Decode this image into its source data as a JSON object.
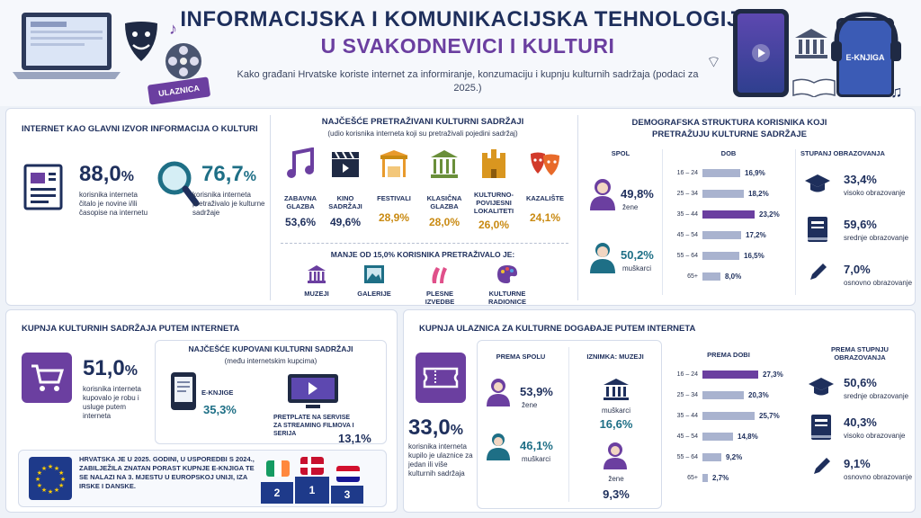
{
  "header": {
    "title_line1": "INFORMACIJSKA I KOMUNIKACIJSKA TEHNOLOGIJA",
    "title_line2": "U SVAKODNEVICI I KULTURI",
    "subtitle": "Kako građani Hrvatske koriste internet za informiranje, konzumaciju i kupnju kulturnih sadržaja (podaci za 2025.)",
    "ticket_label": "ULAZNICA",
    "ebook_label": "E-KNJIGA"
  },
  "info": {
    "title": "INTERNET KAO GLAVNI IZVOR INFORMACIJA O KULTURI",
    "stat1_int": "88,0",
    "stat1_unit": "%",
    "stat1_text": "korisnika interneta čitalo je novine i/ili časopise na internetu",
    "stat2_int": "76,7",
    "stat2_unit": "%",
    "stat2_text": "korisnika interneta pretraživalo je kulturne sadržaje"
  },
  "search": {
    "title": "NAJČEŠĆE PRETRAŽIVANI KULTURNI SADRŽAJI",
    "subtitle": "(udio korisnika interneta koji su pretraživali pojedini sadržaj)",
    "items": [
      {
        "label": "ZABAVNA GLAZBA",
        "pct": "53,6%"
      },
      {
        "label": "KINO SADRŽAJI",
        "pct": "49,6%"
      },
      {
        "label": "FESTIVALI",
        "pct": "28,9%"
      },
      {
        "label": "KLASIČNA GLAZBA",
        "pct": "28,0%"
      },
      {
        "label": "KULTURNO-POVIJESNI LOKALITETI",
        "pct": "26,0%"
      },
      {
        "label": "KAZALIŠTE",
        "pct": "24,1%"
      }
    ],
    "less_title": "MANJE OD 15,0% KORISNIKA PRETRAŽIVALO JE:",
    "less": [
      "MUZEJI",
      "GALERIJE",
      "PLESNE IZVEDBE",
      "KULTURNE RADIONICE"
    ]
  },
  "demo": {
    "title": "DEMOGRAFSKA STRUKTURA KORISNIKA KOJI PRETRAŽUJU KULTURNE SADRŽAJE",
    "sex_title": "SPOL",
    "women_pct": "49,8%",
    "women": "žene",
    "men_pct": "50,2%",
    "men": "muškarci",
    "age_title": "DOB",
    "ages": [
      {
        "label": "16 – 24",
        "value": 16.9,
        "text": "16,9%"
      },
      {
        "label": "25 – 34",
        "value": 18.2,
        "text": "18,2%"
      },
      {
        "label": "35 – 44",
        "value": 23.2,
        "text": "23,2%"
      },
      {
        "label": "45 – 54",
        "value": 17.2,
        "text": "17,2%"
      },
      {
        "label": "55 – 64",
        "value": 16.5,
        "text": "16,5%"
      },
      {
        "label": "65+",
        "value": 8.0,
        "text": "8,0%"
      }
    ],
    "edu_title": "STUPANJ OBRAZOVANJA",
    "edu": [
      {
        "pct": "33,4%",
        "label": "visoko obrazovanje"
      },
      {
        "pct": "59,6%",
        "label": "srednje obrazovanje"
      },
      {
        "pct": "7,0%",
        "label": "osnovno obrazovanje"
      }
    ]
  },
  "buy": {
    "title": "KUPNJA KULTURNIH SADRŽAJA PUTEM INTERNETA",
    "stat_int": "51,0",
    "stat_unit": "%",
    "stat_text": "korisnika interneta kupovalo je robu i usluge putem interneta",
    "box_title": "NAJČEŠĆE KUPOVANI KULTURNI SADRŽAJI",
    "box_sub": "(među internetskim kupcima)",
    "ebook_label": "E-KNJIGE",
    "ebook_pct": "35,3%",
    "stream_label": "PRETPLATE NA SERVISE ZA STREAMING FILMOVA I SERIJA",
    "stream_pct": "13,1%",
    "eu_text": "HRVATSKA JE U 2025. GODINI, U USPOREDBI S 2024., ZABILJEŽILA ZNATAN PORAST KUPNJE E-KNJIGA TE SE NALAZI NA 3. MJESTU U EUROPSKOJ UNIJI, IZA IRSKE I DANSKE.",
    "podium": [
      "2",
      "1",
      "3"
    ]
  },
  "tickets": {
    "title": "KUPNJA ULAZNICA ZA KULTURNE DOGAĐAJE PUTEM INTERNETA",
    "stat_int": "33,0",
    "stat_unit": "%",
    "stat_text": "korisnika interneta kupilo je ulaznice za jedan ili više kulturnih sadržaja",
    "sex_title": "PREMA SPOLU",
    "women_pct": "53,9%",
    "women": "žene",
    "men_pct": "46,1%",
    "men": "muškarci",
    "museum_title": "IZNIMKA: MUZEJI",
    "museum_men": "muškarci",
    "museum_men_pct": "16,6%",
    "museum_women": "žene",
    "museum_women_pct": "9,3%",
    "age_title": "PREMA DOBI",
    "ages": [
      {
        "label": "16 – 24",
        "value": 27.3,
        "text": "27,3%"
      },
      {
        "label": "25 – 34",
        "value": 20.3,
        "text": "20,3%"
      },
      {
        "label": "35 – 44",
        "value": 25.7,
        "text": "25,7%"
      },
      {
        "label": "45 – 54",
        "value": 14.8,
        "text": "14,8%"
      },
      {
        "label": "55 – 64",
        "value": 9.2,
        "text": "9,2%"
      },
      {
        "label": "65+",
        "value": 2.7,
        "text": "2,7%"
      }
    ],
    "edu_title": "PREMA STUPNJU OBRAZOVANJA",
    "edu": [
      {
        "pct": "50,6%",
        "label": "srednje obrazovanje"
      },
      {
        "pct": "40,3%",
        "label": "visoko obrazovanje"
      },
      {
        "pct": "9,1%",
        "label": "osnovno obrazovanje"
      }
    ]
  },
  "colors": {
    "navy": "#1e2f5c",
    "purple": "#6b3fa0",
    "teal": "#1e6f86",
    "gold": "#c98a12",
    "bar": "#a9b3cf"
  }
}
